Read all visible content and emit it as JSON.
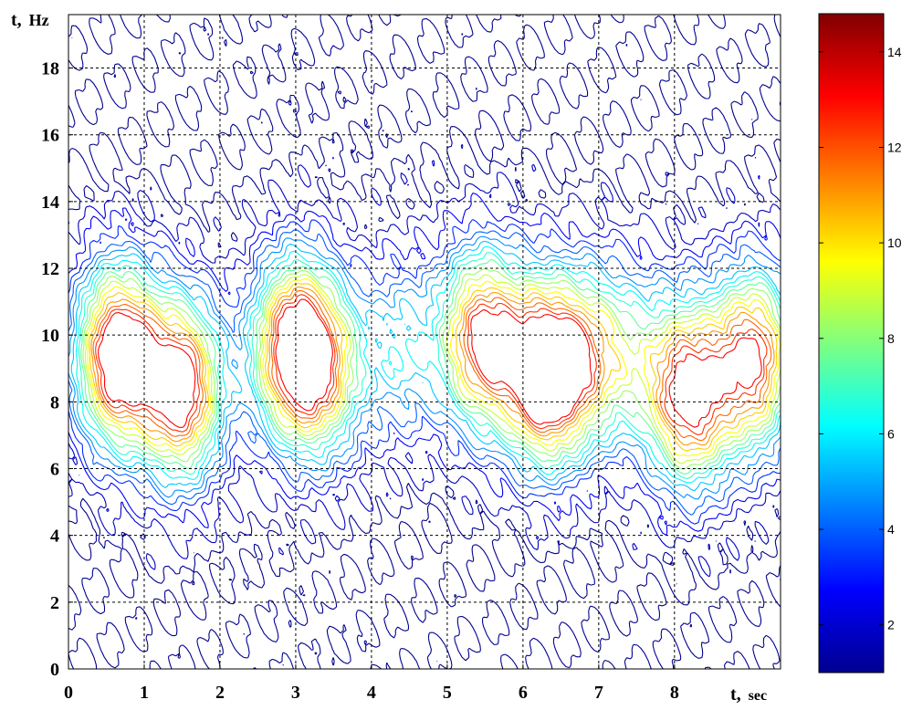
{
  "chart_data": {
    "type": "heatmap",
    "subtype": "contour",
    "xlabel_main": "t,",
    "xlabel_unit": "sec",
    "ylabel_main": "t,",
    "ylabel_unit": "Hz",
    "xlim": [
      0,
      9.4
    ],
    "ylim": [
      0,
      19.6
    ],
    "x_ticks": [
      0,
      1,
      2,
      3,
      4,
      5,
      6,
      7,
      8
    ],
    "y_ticks": [
      0,
      2,
      4,
      6,
      8,
      10,
      12,
      14,
      16,
      18
    ],
    "grid": true,
    "colorbar": {
      "range": [
        1,
        14.8
      ],
      "ticks": [
        2,
        4,
        6,
        8,
        10,
        12,
        14
      ],
      "colormap": "jet",
      "placement": "right"
    },
    "levels": [
      1.2,
      1.9,
      2.6,
      3.3,
      4.0,
      4.7,
      5.4,
      6.1,
      6.8,
      7.5,
      8.2,
      8.9,
      9.6,
      10.3,
      11.0,
      11.7,
      12.4,
      13.1
    ],
    "peaks": [
      {
        "t": 0.65,
        "f": 9.4,
        "amp": 14.2
      },
      {
        "t": 1.5,
        "f": 8.4,
        "amp": 13.0
      },
      {
        "t": 2.95,
        "f": 9.6,
        "amp": 12.2
      },
      {
        "t": 3.4,
        "f": 9.0,
        "amp": 7.5
      },
      {
        "t": 4.4,
        "f": 9.6,
        "amp": 4.5
      },
      {
        "t": 5.45,
        "f": 9.9,
        "amp": 12.0
      },
      {
        "t": 6.3,
        "f": 8.9,
        "amp": 14.8
      },
      {
        "t": 6.95,
        "f": 9.4,
        "amp": 7.0
      },
      {
        "t": 8.2,
        "f": 8.2,
        "amp": 12.5
      },
      {
        "t": 9.05,
        "f": 9.3,
        "amp": 12.0
      },
      {
        "t": 7.55,
        "f": 9.4,
        "amp": 3.5
      }
    ],
    "colors": {
      "low": "#00008f",
      "mid": "#00ffff",
      "high": "#800000",
      "grid": "#000000",
      "frame": "#000000"
    }
  }
}
